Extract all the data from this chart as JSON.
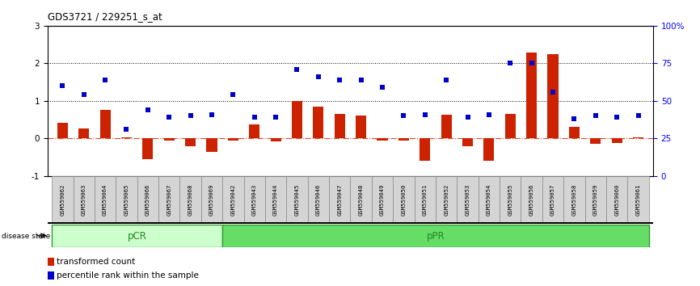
{
  "title": "GDS3721 / 229251_s_at",
  "categories": [
    "GSM559062",
    "GSM559063",
    "GSM559064",
    "GSM559065",
    "GSM559066",
    "GSM559067",
    "GSM559068",
    "GSM559069",
    "GSM559042",
    "GSM559043",
    "GSM559044",
    "GSM559045",
    "GSM559046",
    "GSM559047",
    "GSM559048",
    "GSM559049",
    "GSM559050",
    "GSM559051",
    "GSM559052",
    "GSM559053",
    "GSM559054",
    "GSM559055",
    "GSM559056",
    "GSM559057",
    "GSM559058",
    "GSM559059",
    "GSM559060",
    "GSM559061"
  ],
  "bar_values": [
    0.42,
    0.27,
    0.75,
    0.02,
    -0.55,
    -0.05,
    -0.22,
    -0.35,
    -0.07,
    0.38,
    -0.08,
    1.0,
    0.85,
    0.65,
    0.6,
    -0.05,
    -0.05,
    -0.6,
    0.62,
    -0.22,
    -0.6,
    0.65,
    2.28,
    2.25,
    0.3,
    -0.15,
    -0.13,
    0.02
  ],
  "dot_values": [
    60,
    54,
    64,
    31,
    44,
    39,
    40,
    41,
    54,
    39,
    39,
    71,
    66,
    64,
    64,
    59,
    40,
    41,
    64,
    39,
    41,
    75,
    75,
    56,
    38,
    40,
    39,
    40
  ],
  "pcr_count": 8,
  "ppr_count": 20,
  "bar_color": "#cc2200",
  "dot_color": "#0000cc",
  "ylim": [
    -1.0,
    3.0
  ],
  "y2lim": [
    0,
    100
  ],
  "yticks": [
    -1,
    0,
    1,
    2,
    3
  ],
  "y2ticks": [
    0,
    25,
    50,
    75,
    100
  ],
  "dotted_lines": [
    1.0,
    2.0
  ],
  "pcr_color": "#ccffcc",
  "ppr_color": "#66dd66",
  "bar_width": 0.5,
  "legend_items": [
    "transformed count",
    "percentile rank within the sample"
  ]
}
